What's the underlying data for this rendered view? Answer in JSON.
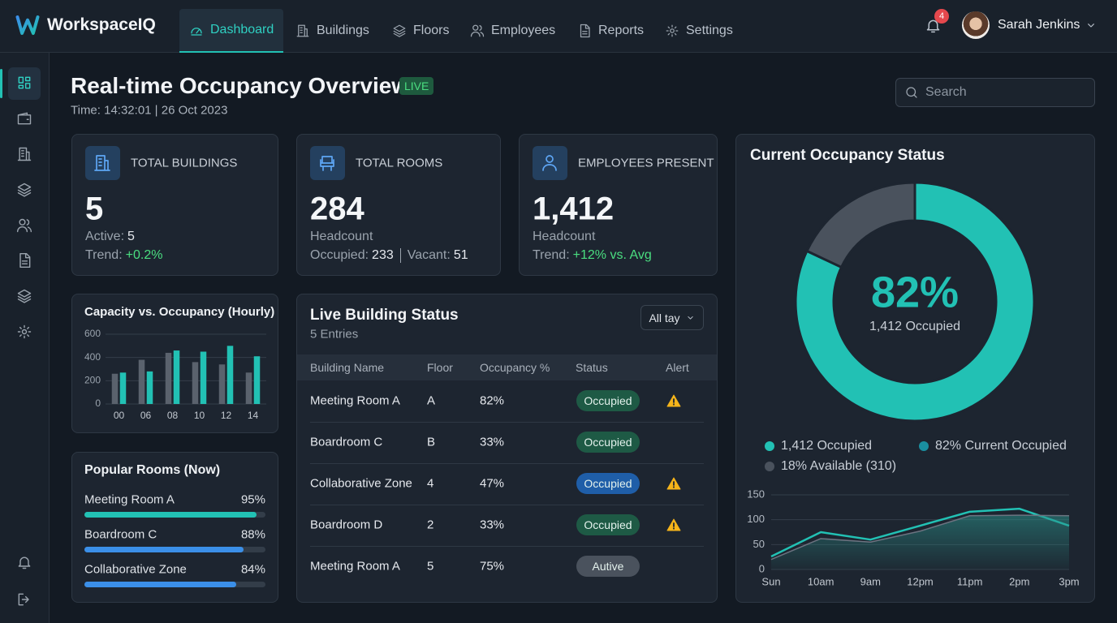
{
  "nav": {
    "brand": "WorkspaceIQ",
    "items": [
      "Dashboard",
      "Buildings",
      "Floors",
      "Employees",
      "Reports",
      "Settings"
    ],
    "notifications": 4,
    "user": "Sarah Jenkins"
  },
  "header": {
    "title": "Real-time Occupancy Overview",
    "badge": "LIVE",
    "time": "Time: 14:32:01 | 26 Oct 2023",
    "search_placeholder": "Search"
  },
  "kpis": [
    {
      "label": "TOTAL BUILDINGS",
      "value": 5,
      "active_label": "Active:",
      "active": 5,
      "trend_label": "Trend:",
      "trend": "+0.2%"
    },
    {
      "label": "TOTAL ROOMS",
      "value": 284,
      "caption": "Headcount",
      "occupied_label": "Occupied:",
      "occupied": 233,
      "vacant_label": "Vacant:",
      "vacant": 51
    },
    {
      "label": "EMPLOYEES PRESENT",
      "value": "1,412",
      "caption": "Headcount",
      "trend_label": "Trend:",
      "trend": "+12% vs. Avg"
    }
  ],
  "chart_data": [
    {
      "type": "bar",
      "title": "Capacity vs. Occupancy (Hourly)",
      "categories": [
        "00",
        "06",
        "08",
        "10",
        "12",
        "14"
      ],
      "series": [
        {
          "color": "#5a626d",
          "values": [
            260,
            380,
            440,
            360,
            340,
            270
          ]
        },
        {
          "color": "#22c1b4",
          "values": [
            270,
            280,
            460,
            450,
            500,
            410
          ]
        }
      ],
      "ylim": [
        0,
        600
      ],
      "yticks": [
        0,
        200,
        400,
        600
      ],
      "grid": true
    },
    {
      "type": "donut",
      "title": "Current Occupancy Status",
      "values": [
        82,
        18
      ],
      "colors": [
        "#22c1b4",
        "#4a525d"
      ],
      "center_label": "82%",
      "center_sublabel": "1,412 Occupied",
      "legend": [
        {
          "label": "1,412 Occupied",
          "color": "#22c1b4"
        },
        {
          "label": "82% Current Occupied",
          "color": "#1a8fa0"
        },
        {
          "label": "18% Available (310)",
          "color": "#4a525d"
        }
      ]
    },
    {
      "type": "line",
      "categories": [
        "Sun",
        "10am",
        "9am",
        "12pm",
        "11pm",
        "2pm",
        "3pm"
      ],
      "series": [
        {
          "color": "#22c1b4",
          "values": [
            26,
            75,
            60,
            88,
            116,
            122,
            88
          ]
        },
        {
          "color": "#6b7380",
          "values": [
            20,
            62,
            55,
            77,
            108,
            109,
            108
          ],
          "area": true
        }
      ],
      "ylim": [
        0,
        150
      ],
      "yticks": [
        0,
        50,
        100,
        150
      ],
      "grid": true
    }
  ],
  "popular_rooms": {
    "title": "Popular Rooms (Now)",
    "items": [
      {
        "name": "Meeting Room A",
        "value": 95,
        "value_label": "95%",
        "color": "#22c1b4"
      },
      {
        "name": "Boardroom C",
        "value": 88,
        "value_label": "88%",
        "color": "#3b8fe8"
      },
      {
        "name": "Collaborative Zone",
        "value": 84,
        "value_label": "84%",
        "color": "#3b8fe8"
      }
    ]
  },
  "building_status": {
    "title": "Live Building Status",
    "subtitle": "5 Entries",
    "filter": "All tay",
    "columns": [
      "Building Name",
      "Floor",
      "Occupancy %",
      "Status",
      "Alert"
    ],
    "rows": [
      {
        "name": "Meeting Room A",
        "floor": "A",
        "occupancy": "82%",
        "status": "Occupied",
        "status_color": "#1e5a45",
        "alert": true
      },
      {
        "name": "Boardroom C",
        "floor": "B",
        "occupancy": "33%",
        "status": "Occupied",
        "status_color": "#1e5a45",
        "alert": false
      },
      {
        "name": "Collaborative Zone",
        "floor": "4",
        "occupancy": "47%",
        "status": "Occupied",
        "status_color": "#1f5ea8",
        "alert": true
      },
      {
        "name": "Boardroom D",
        "floor": "2",
        "occupancy": "33%",
        "status": "Occupied",
        "status_color": "#1e5a45",
        "alert": true
      },
      {
        "name": "Meeting Room A",
        "floor": "5",
        "occupancy": "75%",
        "status": "Autive",
        "status_color": "#4a525d",
        "alert": false
      }
    ]
  }
}
